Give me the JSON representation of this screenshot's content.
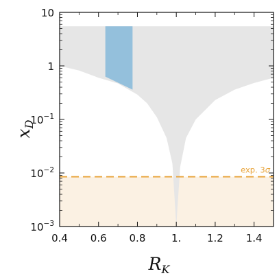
{
  "chart_data": {
    "type": "area",
    "xlabel": "R",
    "xlabel_sub": "K",
    "ylabel": "x",
    "ylabel_sub": "D",
    "xlim": [
      0.4,
      1.5
    ],
    "ylim": [
      0.001,
      10
    ],
    "yscale": "log",
    "grid": false,
    "x_ticks": [
      {
        "value": 0.4,
        "label": "0.4"
      },
      {
        "value": 0.6,
        "label": "0.6"
      },
      {
        "value": 0.8,
        "label": "0.8"
      },
      {
        "value": 1.0,
        "label": "1."
      },
      {
        "value": 1.2,
        "label": "1.2"
      },
      {
        "value": 1.4,
        "label": "1.4"
      }
    ],
    "y_ticks": [
      {
        "value": 0.001,
        "base": "10",
        "exp": "−3"
      },
      {
        "value": 0.01,
        "base": "10",
        "exp": "−2"
      },
      {
        "value": 0.1,
        "base": "10",
        "exp": "−1"
      },
      {
        "value": 1,
        "base": "1",
        "exp": ""
      },
      {
        "value": 10,
        "base": "10",
        "exp": ""
      }
    ],
    "colors": {
      "allowed_region": "#e6e6e6",
      "highlight_region": "#94c0dc",
      "excluded_band": "#fbf1e3",
      "limit_line": "#e8a338"
    },
    "series": [
      {
        "upper_edge": 5.5,
        "lower_edge": [
          {
            "x": 0.4,
            "y": 1.0
          },
          {
            "x": 0.5,
            "y": 0.82
          },
          {
            "x": 0.6,
            "y": 0.6
          },
          {
            "x": 0.7,
            "y": 0.47
          },
          {
            "x": 0.8,
            "y": 0.29
          },
          {
            "x": 0.85,
            "y": 0.2
          },
          {
            "x": 0.9,
            "y": 0.11
          },
          {
            "x": 0.95,
            "y": 0.045
          },
          {
            "x": 0.98,
            "y": 0.015
          },
          {
            "x": 0.995,
            "y": 0.002
          },
          {
            "x": 1.0,
            "y": 0.001
          },
          {
            "x": 1.005,
            "y": 0.002
          },
          {
            "x": 1.02,
            "y": 0.013
          },
          {
            "x": 1.05,
            "y": 0.045
          },
          {
            "x": 1.1,
            "y": 0.1
          },
          {
            "x": 1.2,
            "y": 0.23
          },
          {
            "x": 1.3,
            "y": 0.36
          },
          {
            "x": 1.4,
            "y": 0.48
          },
          {
            "x": 1.5,
            "y": 0.6
          }
        ]
      },
      {
        "x_range": [
          0.635,
          0.775
        ],
        "upper_edge": 5.5,
        "lower_edge": [
          {
            "x": 0.635,
            "y": 0.63
          },
          {
            "x": 0.775,
            "y": 0.36
          }
        ]
      }
    ],
    "limit": {
      "y": 0.0085,
      "label_text": "exp. 3",
      "label_symbol": "σ"
    }
  }
}
